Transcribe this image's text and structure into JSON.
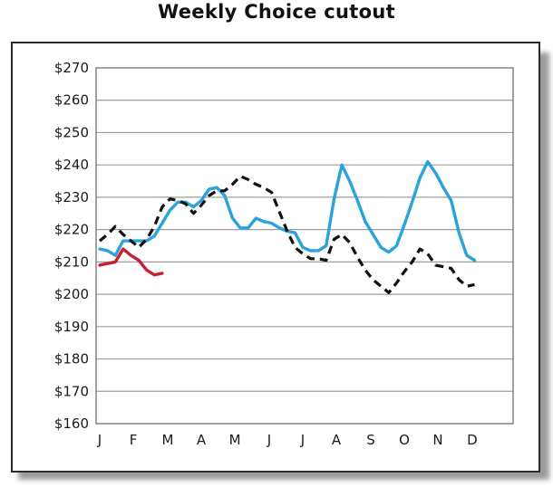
{
  "chart_data": {
    "type": "line",
    "title": "Weekly Choice cutout",
    "xlabel": "",
    "ylabel": "",
    "ylim": [
      160,
      270
    ],
    "yticks": [
      270,
      260,
      250,
      240,
      230,
      220,
      210,
      200,
      190,
      180,
      170,
      160
    ],
    "ytick_labels": [
      "$270",
      "$260",
      "$250",
      "$240",
      "$230",
      "$220",
      "$210",
      "$200",
      "$190",
      "$180",
      "$170",
      "$160"
    ],
    "xlim": [
      0,
      52
    ],
    "xticks": [
      0,
      4.3,
      8.7,
      13,
      17.3,
      21.7,
      26,
      30.3,
      34.7,
      39,
      43.3,
      47.7
    ],
    "xtick_labels": [
      "J",
      "F",
      "M",
      "A",
      "M",
      "J",
      "J",
      "A",
      "S",
      "O",
      "N",
      "D"
    ],
    "grid": true,
    "legend": "none",
    "series": [
      {
        "color": "#2aa3dc",
        "style": "solid",
        "x": [
          0,
          1,
          2,
          3,
          4,
          5,
          6,
          7,
          8,
          9,
          10,
          11,
          12,
          13,
          14,
          15,
          16,
          17,
          18,
          19,
          20,
          21,
          22,
          23,
          24,
          25,
          26,
          27,
          28,
          29,
          30,
          31,
          32,
          33,
          34,
          35,
          36,
          37,
          38,
          39,
          40,
          41,
          42,
          43,
          44,
          45,
          46,
          47,
          48,
          49,
          50,
          51
        ],
        "values": [
          214,
          213.5,
          212,
          216.5,
          216.5,
          216.5,
          216.5,
          218,
          222,
          226,
          228.5,
          228.5,
          227,
          229,
          232.5,
          233,
          230.5,
          223.5,
          220.5,
          220.5,
          223.5,
          222.5,
          222,
          220.5,
          219.5,
          219,
          214.5,
          213.5,
          213.5,
          215,
          229.5,
          240,
          235,
          229,
          222.5,
          218.5,
          214.5,
          213,
          215,
          221.5,
          228.5,
          236,
          241,
          237.5,
          233,
          229,
          219,
          212,
          210.5,
          null,
          null,
          null
        ]
      },
      {
        "color": "#111111",
        "style": "dashed",
        "x": [
          0,
          1,
          2,
          3,
          4,
          5,
          6,
          7,
          8,
          9,
          10,
          11,
          12,
          13,
          14,
          15,
          16,
          17,
          18,
          19,
          20,
          21,
          22,
          23,
          24,
          25,
          26,
          27,
          28,
          29,
          30,
          31,
          32,
          33,
          34,
          35,
          36,
          37,
          38,
          39,
          40,
          41,
          42,
          43,
          44,
          45,
          46,
          47,
          48,
          49,
          50,
          51
        ],
        "values": [
          216.5,
          218.5,
          221,
          218.5,
          216.5,
          214.5,
          217,
          221,
          227,
          229.5,
          229,
          228,
          225,
          227.5,
          230.5,
          232,
          232,
          234,
          236.5,
          235.5,
          234,
          233,
          231.5,
          225.5,
          219.5,
          214.5,
          212.5,
          211,
          211,
          210.5,
          217,
          218.5,
          216,
          211.5,
          207.5,
          204.5,
          202.5,
          200.5,
          203.5,
          207,
          210,
          214,
          212.5,
          209,
          208.5,
          208,
          204.5,
          202.5,
          203,
          null,
          null,
          null
        ]
      },
      {
        "color": "#c42230",
        "style": "solid",
        "x": [
          0,
          1,
          2,
          3,
          4,
          5,
          6,
          7,
          8
        ],
        "values": [
          209,
          209.5,
          210,
          214,
          212,
          210.5,
          207.5,
          206,
          206.5
        ]
      }
    ]
  }
}
